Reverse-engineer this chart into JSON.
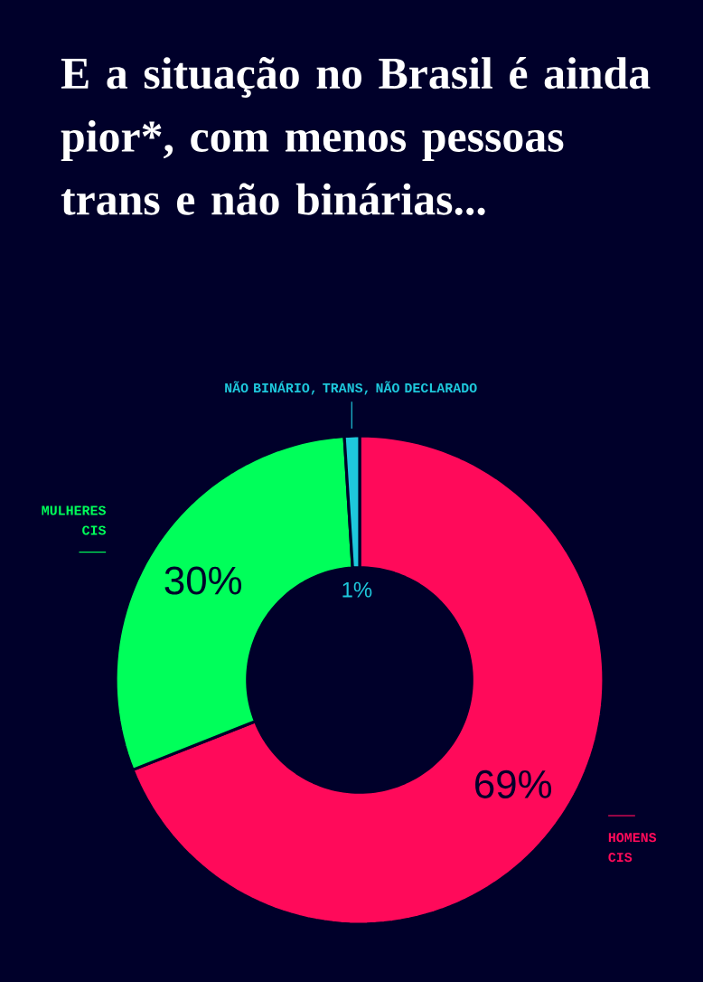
{
  "chart_data": {
    "type": "donut",
    "title": "E a situação no Brasil é ainda pior*, com menos pessoas trans e não binárias...",
    "categories": [
      "HOMENS CIS",
      "MULHERES CIS",
      "NÃO BINÁRIO, TRANS, NÃO DECLARADO"
    ],
    "values": [
      69,
      30,
      1
    ],
    "colors": [
      "#ff0a5a",
      "#00ff5a",
      "#1ec8dc"
    ],
    "value_labels": [
      "69%",
      "30%",
      "1%"
    ]
  }
}
